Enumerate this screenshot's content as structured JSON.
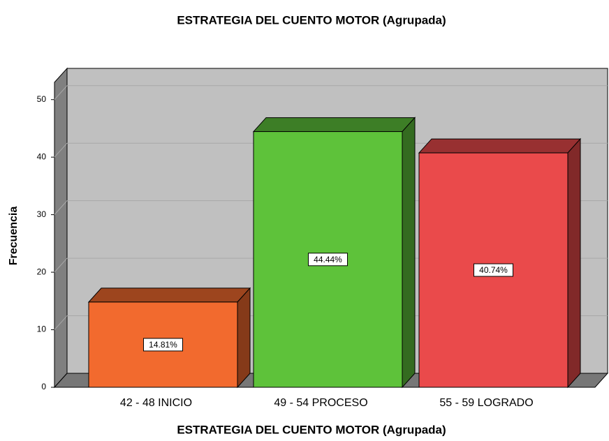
{
  "chart_data": {
    "type": "bar3d",
    "title": "ESTRATEGIA DEL CUENTO MOTOR (Agrupada)",
    "x_label": "ESTRATEGIA DEL CUENTO MOTOR (Agrupada)",
    "y_label": "Frecuencia",
    "categories": [
      "42 -  48 INICIO",
      "49 - 54 PROCESO",
      "55 - 59 LOGRADO"
    ],
    "values": [
      14.81,
      44.44,
      40.74
    ],
    "value_labels": [
      "14.81%",
      "44.44%",
      "40.74%"
    ],
    "colors": [
      "#f26a2e",
      "#5ec23a",
      "#ea4a4b"
    ],
    "ylim": [
      0,
      53
    ],
    "yticks": [
      0,
      10,
      20,
      30,
      40,
      50
    ],
    "grid": true
  }
}
